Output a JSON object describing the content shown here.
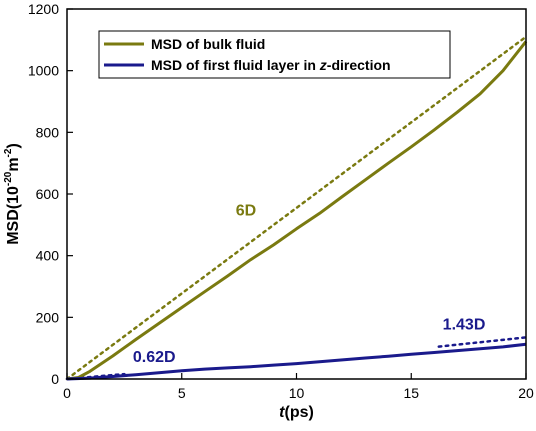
{
  "chart_data": {
    "type": "line",
    "xlabel": {
      "italic": "t",
      "rest": "(ps)"
    },
    "ylabel": {
      "prefix": "MSD(10",
      "exp1": "-20",
      "mid": "m",
      "exp2": "-2",
      "suffix": ")"
    },
    "xlim": [
      0,
      20
    ],
    "ylim": [
      0,
      1200
    ],
    "xticks": [
      0,
      5,
      10,
      15,
      20
    ],
    "yticks": [
      0,
      200,
      400,
      600,
      800,
      1000,
      1200
    ],
    "legend_position": "top-left",
    "legend": [
      {
        "text": "MSD of bulk fluid",
        "series": 0
      },
      {
        "prefix": "MSD of first fluid layer in ",
        "italic": "z",
        "suffix": "-direction",
        "series": 1
      }
    ],
    "series": [
      {
        "name": "MSD of bulk fluid",
        "color": "#7a7a10",
        "style": "solid",
        "x": [
          0,
          0.5,
          1,
          2,
          3,
          4,
          5,
          6,
          7,
          8,
          9,
          10,
          11,
          12,
          13,
          14,
          15,
          16,
          17,
          18,
          19,
          20
        ],
        "y": [
          0,
          5,
          25,
          75,
          128,
          180,
          232,
          283,
          334,
          387,
          435,
          487,
          537,
          592,
          646,
          700,
          753,
          808,
          865,
          925,
          1000,
          1095
        ]
      },
      {
        "name": "MSD of first fluid layer in z-direction",
        "color": "#1a1a8c",
        "style": "solid",
        "x": [
          0,
          1,
          2,
          3,
          4,
          5,
          6,
          7,
          8,
          9,
          10,
          11,
          12,
          13,
          14,
          15,
          16,
          17,
          18,
          19,
          20
        ],
        "y": [
          0,
          3,
          8,
          14,
          20,
          27,
          32,
          36,
          40,
          45,
          50,
          56,
          62,
          68,
          74,
          80,
          86,
          92,
          98,
          104,
          113
        ]
      }
    ],
    "fits": [
      {
        "series": 0,
        "color": "#7a7a10",
        "x": [
          0,
          20
        ],
        "y": [
          0,
          1110
        ]
      },
      {
        "series": 1,
        "color": "#1a1a8c",
        "x": [
          0,
          2.5
        ],
        "y": [
          0,
          16
        ]
      },
      {
        "series": 1,
        "color": "#1a1a8c",
        "x": [
          16.2,
          20
        ],
        "y": [
          105,
          135
        ]
      }
    ],
    "annotations": [
      {
        "text": "6D",
        "x": 7.8,
        "y": 530,
        "color": "#7a7a10"
      },
      {
        "text": "0.62D",
        "x": 3.8,
        "y": 55,
        "color": "#1a1a8c"
      },
      {
        "text": "1.43D",
        "x": 17.3,
        "y": 160,
        "color": "#1a1a8c"
      }
    ]
  }
}
